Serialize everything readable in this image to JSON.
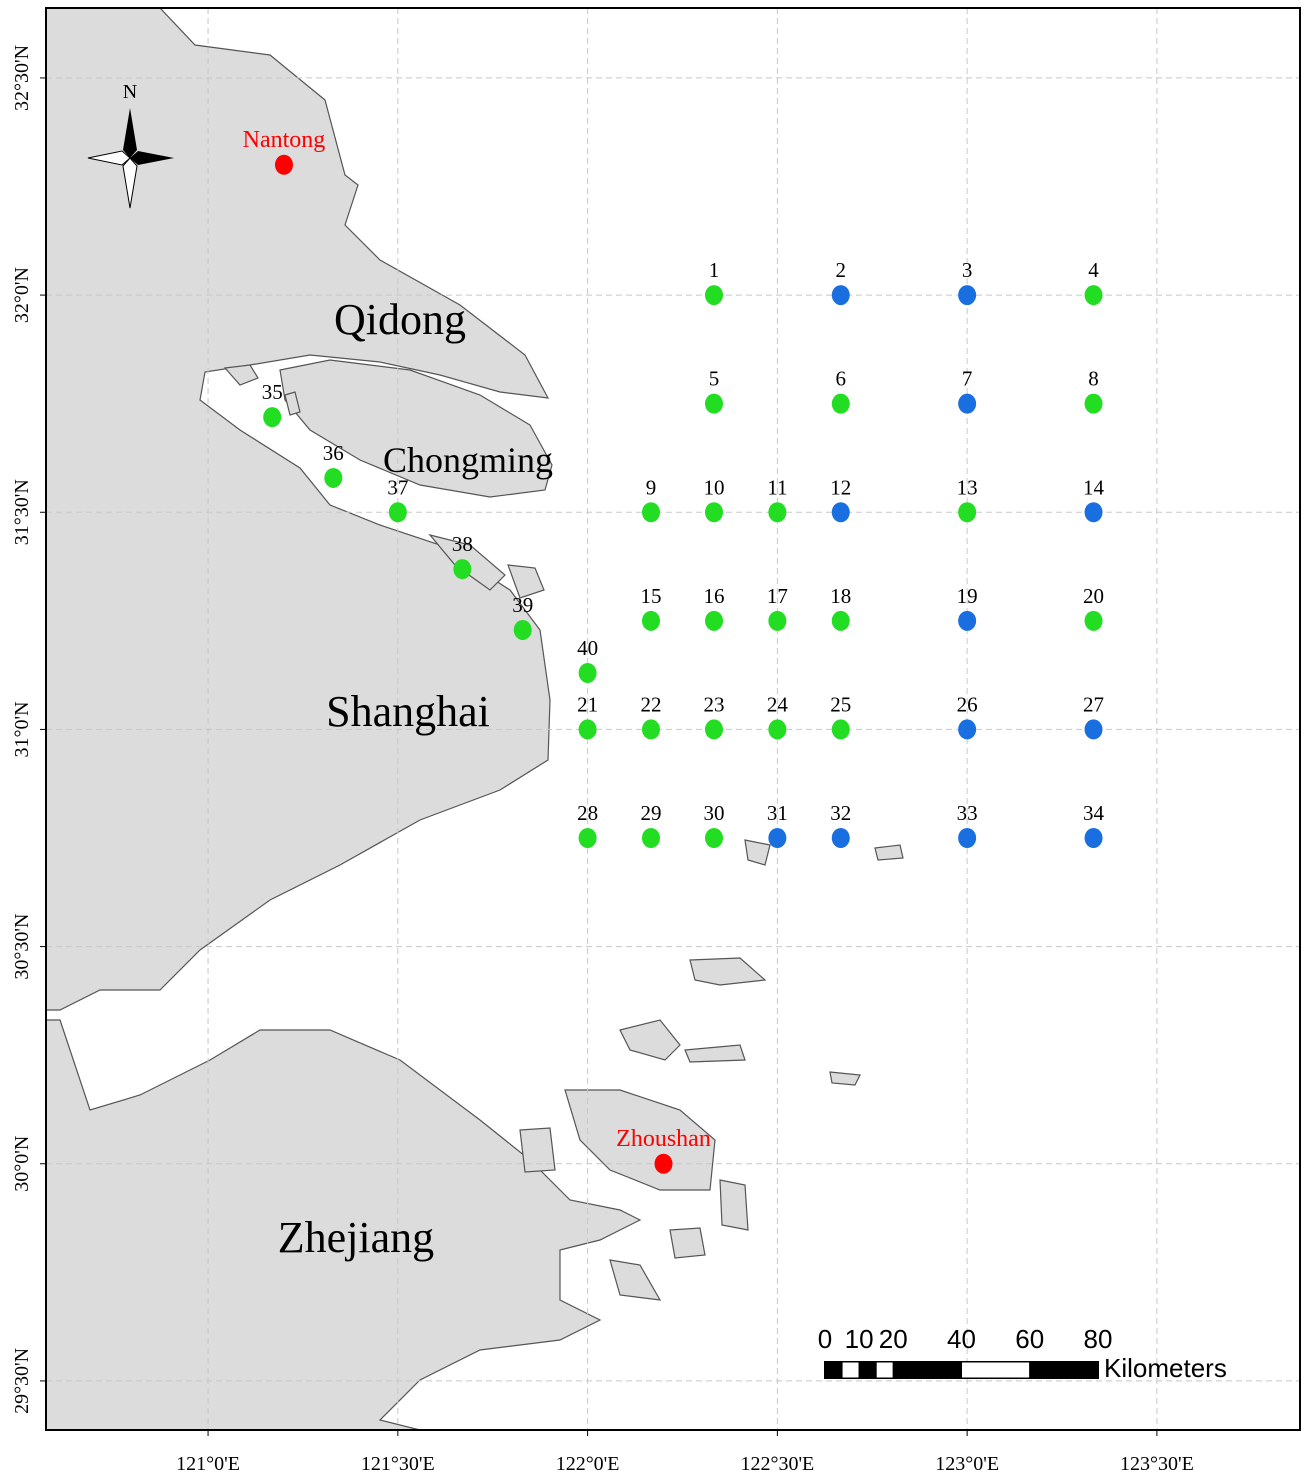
{
  "map": {
    "xlim": [
      120.573,
      123.877
    ],
    "ylim": [
      29.387,
      32.661
    ],
    "grid": true,
    "xticks": [
      {
        "value": 121,
        "label": "121°0'E"
      },
      {
        "value": 121.5,
        "label": "121°30'E"
      },
      {
        "value": 122,
        "label": "122°0'E"
      },
      {
        "value": 122.5,
        "label": "122°30'E"
      },
      {
        "value": 123,
        "label": "123°0'E"
      },
      {
        "value": 123.5,
        "label": "123°30'E"
      }
    ],
    "yticks": [
      {
        "value": 32.5,
        "label": "32°30'N"
      },
      {
        "value": 32,
        "label": "32°0'N"
      },
      {
        "value": 31.5,
        "label": "31°30'N"
      },
      {
        "value": 31,
        "label": "31°0'N"
      },
      {
        "value": 30.5,
        "label": "30°30'N"
      },
      {
        "value": 30,
        "label": "30°0'N"
      },
      {
        "value": 29.5,
        "label": "29°30'N"
      }
    ],
    "compass": "N",
    "places": [
      {
        "label": "Qidong"
      },
      {
        "label": "Chongming"
      },
      {
        "label": "Shanghai"
      },
      {
        "label": "Zhejiang"
      }
    ],
    "cities": [
      {
        "label": "Nantong",
        "lon": 121.2,
        "lat": 32.3,
        "color": "#ff0000"
      },
      {
        "label": "Zhoushan",
        "lon": 122.2,
        "lat": 30.0,
        "color": "#ff0000"
      }
    ],
    "stations": [
      {
        "label": "1",
        "lon": 122.333,
        "lat": 32.0,
        "color": "#22dd22"
      },
      {
        "label": "2",
        "lon": 122.667,
        "lat": 32.0,
        "color": "#1a6fe0"
      },
      {
        "label": "3",
        "lon": 123.0,
        "lat": 32.0,
        "color": "#1a6fe0"
      },
      {
        "label": "4",
        "lon": 123.333,
        "lat": 32.0,
        "color": "#22dd22"
      },
      {
        "label": "5",
        "lon": 122.333,
        "lat": 31.75,
        "color": "#22dd22"
      },
      {
        "label": "6",
        "lon": 122.667,
        "lat": 31.75,
        "color": "#22dd22"
      },
      {
        "label": "7",
        "lon": 123.0,
        "lat": 31.75,
        "color": "#1a6fe0"
      },
      {
        "label": "8",
        "lon": 123.333,
        "lat": 31.75,
        "color": "#22dd22"
      },
      {
        "label": "9",
        "lon": 122.167,
        "lat": 31.5,
        "color": "#22dd22"
      },
      {
        "label": "10",
        "lon": 122.333,
        "lat": 31.5,
        "color": "#22dd22"
      },
      {
        "label": "11",
        "lon": 122.5,
        "lat": 31.5,
        "color": "#22dd22"
      },
      {
        "label": "12",
        "lon": 122.667,
        "lat": 31.5,
        "color": "#1a6fe0"
      },
      {
        "label": "13",
        "lon": 123.0,
        "lat": 31.5,
        "color": "#22dd22"
      },
      {
        "label": "14",
        "lon": 123.333,
        "lat": 31.5,
        "color": "#1a6fe0"
      },
      {
        "label": "15",
        "lon": 122.167,
        "lat": 31.25,
        "color": "#22dd22"
      },
      {
        "label": "16",
        "lon": 122.333,
        "lat": 31.25,
        "color": "#22dd22"
      },
      {
        "label": "17",
        "lon": 122.5,
        "lat": 31.25,
        "color": "#22dd22"
      },
      {
        "label": "18",
        "lon": 122.667,
        "lat": 31.25,
        "color": "#22dd22"
      },
      {
        "label": "19",
        "lon": 123.0,
        "lat": 31.25,
        "color": "#1a6fe0"
      },
      {
        "label": "20",
        "lon": 123.333,
        "lat": 31.25,
        "color": "#22dd22"
      },
      {
        "label": "21",
        "lon": 122.0,
        "lat": 31.0,
        "color": "#22dd22"
      },
      {
        "label": "22",
        "lon": 122.167,
        "lat": 31.0,
        "color": "#22dd22"
      },
      {
        "label": "23",
        "lon": 122.333,
        "lat": 31.0,
        "color": "#22dd22"
      },
      {
        "label": "24",
        "lon": 122.5,
        "lat": 31.0,
        "color": "#22dd22"
      },
      {
        "label": "25",
        "lon": 122.667,
        "lat": 31.0,
        "color": "#22dd22"
      },
      {
        "label": "26",
        "lon": 123.0,
        "lat": 31.0,
        "color": "#1a6fe0"
      },
      {
        "label": "27",
        "lon": 123.333,
        "lat": 31.0,
        "color": "#1a6fe0"
      },
      {
        "label": "28",
        "lon": 122.0,
        "lat": 30.75,
        "color": "#22dd22"
      },
      {
        "label": "29",
        "lon": 122.167,
        "lat": 30.75,
        "color": "#22dd22"
      },
      {
        "label": "30",
        "lon": 122.333,
        "lat": 30.75,
        "color": "#22dd22"
      },
      {
        "label": "31",
        "lon": 122.5,
        "lat": 30.75,
        "color": "#1a6fe0"
      },
      {
        "label": "32",
        "lon": 122.667,
        "lat": 30.75,
        "color": "#1a6fe0"
      },
      {
        "label": "33",
        "lon": 123.0,
        "lat": 30.75,
        "color": "#1a6fe0"
      },
      {
        "label": "34",
        "lon": 123.333,
        "lat": 30.75,
        "color": "#1a6fe0"
      },
      {
        "label": "35",
        "lon": 121.169,
        "lat": 31.719,
        "color": "#22dd22"
      },
      {
        "label": "36",
        "lon": 121.33,
        "lat": 31.579,
        "color": "#22dd22"
      },
      {
        "label": "37",
        "lon": 121.5,
        "lat": 31.5,
        "color": "#22dd22"
      },
      {
        "label": "38",
        "lon": 121.67,
        "lat": 31.369,
        "color": "#22dd22"
      },
      {
        "label": "39",
        "lon": 121.829,
        "lat": 31.229,
        "color": "#22dd22"
      },
      {
        "label": "40",
        "lon": 122.0,
        "lat": 31.13,
        "color": "#22dd22"
      }
    ],
    "scale_bar": {
      "ticks": [
        0,
        10,
        20,
        40,
        60,
        80
      ],
      "unit": "Kilometers"
    }
  }
}
